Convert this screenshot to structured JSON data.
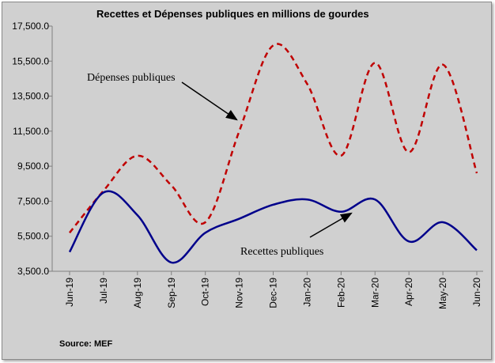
{
  "chart_data": {
    "type": "line",
    "title": "Recettes et Dépenses publiques en millions de gourdes",
    "xlabel": "",
    "ylabel": "",
    "categories": [
      "Jun-19",
      "Jul-19",
      "Aug-19",
      "Sep-19",
      "Oct-19",
      "Nov-19",
      "Dec-19",
      "Jan-20",
      "Feb-20",
      "Mar-20",
      "Apr-20",
      "May-20",
      "Jun-20"
    ],
    "ylim": [
      3500,
      17500
    ],
    "yticks": [
      "3,500.0",
      "5,500.0",
      "7,500.0",
      "9,500.0",
      "11,500.0",
      "13,500.0",
      "15,500.0",
      "17,500.0"
    ],
    "ytick_values": [
      3500,
      5500,
      7500,
      9500,
      11500,
      13500,
      15500,
      17500
    ],
    "grid": "none",
    "series": [
      {
        "name": "Dépenses publiques",
        "color": "#c00000",
        "style": "dashed",
        "values": [
          5700,
          8100,
          10100,
          8400,
          6300,
          11500,
          16400,
          14200,
          10100,
          15400,
          10300,
          15300,
          9100
        ]
      },
      {
        "name": "Recettes publiques",
        "color": "#00008b",
        "style": "solid",
        "values": [
          4600,
          8000,
          6700,
          4000,
          5700,
          6500,
          7300,
          7600,
          6900,
          7600,
          5200,
          6300,
          4700
        ]
      }
    ],
    "annotations": [
      {
        "text": "Dépenses publiques",
        "series": 0,
        "point_x": 5,
        "point_y": 12600
      },
      {
        "text": "Recettes publiques",
        "series": 1,
        "point_x": 8.4,
        "point_y": 7000
      }
    ],
    "source": "Source:  MEF"
  }
}
